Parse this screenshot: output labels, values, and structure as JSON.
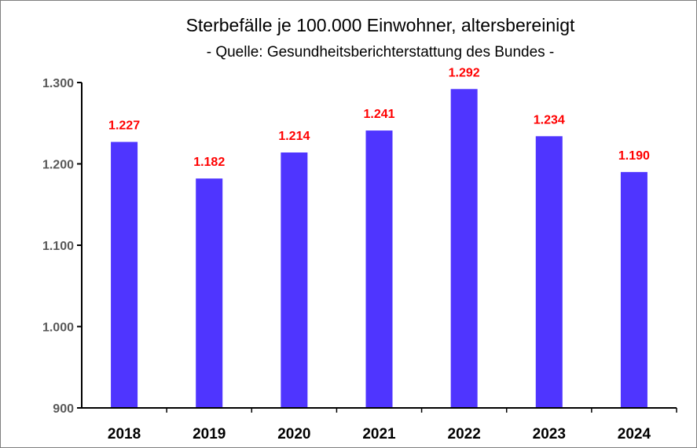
{
  "chart_data": {
    "type": "bar",
    "title": "Sterbefälle je 100.000 Einwohner, altersbereinigt",
    "subtitle": "- Quelle: Gesundheitsberichterstattung des Bundes -",
    "categories": [
      "2018",
      "2019",
      "2020",
      "2021",
      "2022",
      "2023",
      "2024"
    ],
    "values": [
      1227,
      1182,
      1214,
      1241,
      1292,
      1234,
      1190
    ],
    "data_labels": [
      "1.227",
      "1.182",
      "1.214",
      "1.241",
      "1.292",
      "1.234",
      "1.190"
    ],
    "yticks": [
      900,
      1000,
      1100,
      1200,
      1300
    ],
    "ytick_labels": [
      "900",
      "1.000",
      "1.100",
      "1.200",
      "1.300"
    ],
    "ylim": [
      900,
      1300
    ],
    "xlabel": "",
    "ylabel": "",
    "grid": false,
    "legend": "none",
    "colors": {
      "bar": "#4f35ff",
      "data_label": "#ff0000",
      "axis": "#000000",
      "ytick_text": "#595959"
    }
  }
}
